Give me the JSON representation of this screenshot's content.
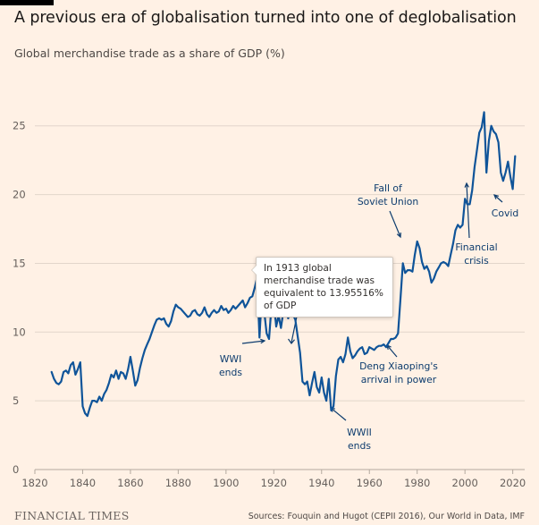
{
  "header": {
    "title": "A previous era of globalisation turned into one of deglobalisation",
    "subtitle": "Global merchandise trade as a share of GDP (%)"
  },
  "footer": {
    "brand": "FINANCIAL TIMES",
    "source": "Sources: Fouquin and Hugot (CEPII 2016), Our World in Data, IMF"
  },
  "tooltip": {
    "text": "In 1913 global merchandise trade was equivalent to 13.95516% of GDP"
  },
  "colors": {
    "background": "#fff1e5",
    "line": "#0f5499",
    "annotation": "#0d3c6e",
    "grid": "#e2d6cb",
    "axis_text": "#66605c"
  },
  "chart_data": {
    "type": "line",
    "title": "",
    "xlabel": "",
    "ylabel": "",
    "xlim": [
      1820,
      2025
    ],
    "ylim": [
      0,
      27
    ],
    "x_ticks": [
      1820,
      1840,
      1860,
      1880,
      1900,
      1920,
      1940,
      1960,
      1980,
      2000,
      2020
    ],
    "y_ticks": [
      0,
      5,
      10,
      15,
      20,
      25
    ],
    "grid": true,
    "series": [
      {
        "points": [
          [
            1827,
            7.1
          ],
          [
            1828,
            6.6
          ],
          [
            1829,
            6.3
          ],
          [
            1830,
            6.2
          ],
          [
            1831,
            6.4
          ],
          [
            1832,
            7.1
          ],
          [
            1833,
            7.2
          ],
          [
            1834,
            7.0
          ],
          [
            1835,
            7.6
          ],
          [
            1836,
            7.8
          ],
          [
            1837,
            6.9
          ],
          [
            1838,
            7.3
          ],
          [
            1839,
            7.8
          ],
          [
            1840,
            4.6
          ],
          [
            1841,
            4.1
          ],
          [
            1842,
            3.9
          ],
          [
            1843,
            4.5
          ],
          [
            1844,
            5.0
          ],
          [
            1845,
            5.0
          ],
          [
            1846,
            4.9
          ],
          [
            1847,
            5.3
          ],
          [
            1848,
            5.0
          ],
          [
            1849,
            5.5
          ],
          [
            1850,
            5.8
          ],
          [
            1851,
            6.3
          ],
          [
            1852,
            6.9
          ],
          [
            1853,
            6.7
          ],
          [
            1854,
            7.2
          ],
          [
            1855,
            6.6
          ],
          [
            1856,
            7.1
          ],
          [
            1857,
            7.0
          ],
          [
            1858,
            6.6
          ],
          [
            1859,
            7.3
          ],
          [
            1860,
            8.2
          ],
          [
            1861,
            7.2
          ],
          [
            1862,
            6.1
          ],
          [
            1863,
            6.5
          ],
          [
            1864,
            7.4
          ],
          [
            1865,
            8.1
          ],
          [
            1866,
            8.7
          ],
          [
            1867,
            9.1
          ],
          [
            1868,
            9.5
          ],
          [
            1869,
            10.0
          ],
          [
            1870,
            10.5
          ],
          [
            1871,
            10.9
          ],
          [
            1872,
            11.0
          ],
          [
            1873,
            10.9
          ],
          [
            1874,
            11.0
          ],
          [
            1875,
            10.6
          ],
          [
            1876,
            10.4
          ],
          [
            1877,
            10.8
          ],
          [
            1878,
            11.5
          ],
          [
            1879,
            12.0
          ],
          [
            1880,
            11.8
          ],
          [
            1881,
            11.7
          ],
          [
            1882,
            11.5
          ],
          [
            1883,
            11.3
          ],
          [
            1884,
            11.1
          ],
          [
            1885,
            11.2
          ],
          [
            1886,
            11.5
          ],
          [
            1887,
            11.6
          ],
          [
            1888,
            11.3
          ],
          [
            1889,
            11.2
          ],
          [
            1890,
            11.4
          ],
          [
            1891,
            11.8
          ],
          [
            1892,
            11.3
          ],
          [
            1893,
            11.1
          ],
          [
            1894,
            11.4
          ],
          [
            1895,
            11.6
          ],
          [
            1896,
            11.4
          ],
          [
            1897,
            11.5
          ],
          [
            1898,
            11.9
          ],
          [
            1899,
            11.6
          ],
          [
            1900,
            11.7
          ],
          [
            1901,
            11.4
          ],
          [
            1902,
            11.6
          ],
          [
            1903,
            11.9
          ],
          [
            1904,
            11.7
          ],
          [
            1905,
            11.9
          ],
          [
            1906,
            12.1
          ],
          [
            1907,
            12.3
          ],
          [
            1908,
            11.8
          ],
          [
            1909,
            12.1
          ],
          [
            1910,
            12.5
          ],
          [
            1911,
            12.6
          ],
          [
            1912,
            13.2
          ],
          [
            1913,
            13.95516
          ],
          [
            1914,
            9.6
          ],
          [
            1915,
            12.9
          ],
          [
            1916,
            11.5
          ],
          [
            1917,
            9.9
          ],
          [
            1918,
            9.5
          ],
          [
            1919,
            11.8
          ],
          [
            1920,
            12.2
          ],
          [
            1921,
            10.4
          ],
          [
            1922,
            11.2
          ],
          [
            1923,
            10.3
          ],
          [
            1924,
            11.5
          ],
          [
            1925,
            12.0
          ],
          [
            1926,
            11.0
          ],
          [
            1927,
            11.6
          ],
          [
            1928,
            11.3
          ],
          [
            1929,
            10.9
          ],
          [
            1930,
            9.7
          ],
          [
            1931,
            8.5
          ],
          [
            1932,
            6.4
          ],
          [
            1933,
            6.2
          ],
          [
            1934,
            6.4
          ],
          [
            1935,
            5.4
          ],
          [
            1936,
            6.3
          ],
          [
            1937,
            7.1
          ],
          [
            1938,
            6.0
          ],
          [
            1939,
            5.6
          ],
          [
            1940,
            6.7
          ],
          [
            1941,
            5.6
          ],
          [
            1942,
            5.0
          ],
          [
            1943,
            6.6
          ],
          [
            1944,
            4.3
          ],
          [
            1945,
            4.6
          ],
          [
            1946,
            6.8
          ],
          [
            1947,
            8.0
          ],
          [
            1948,
            8.2
          ],
          [
            1949,
            7.8
          ],
          [
            1950,
            8.4
          ],
          [
            1951,
            9.6
          ],
          [
            1952,
            8.6
          ],
          [
            1953,
            8.1
          ],
          [
            1954,
            8.3
          ],
          [
            1955,
            8.6
          ],
          [
            1956,
            8.8
          ],
          [
            1957,
            8.9
          ],
          [
            1958,
            8.4
          ],
          [
            1959,
            8.5
          ],
          [
            1960,
            8.9
          ],
          [
            1961,
            8.8
          ],
          [
            1962,
            8.7
          ],
          [
            1963,
            8.9
          ],
          [
            1964,
            9.0
          ],
          [
            1965,
            9.0
          ],
          [
            1966,
            9.1
          ],
          [
            1967,
            8.9
          ],
          [
            1968,
            9.2
          ],
          [
            1969,
            9.5
          ],
          [
            1970,
            9.5
          ],
          [
            1971,
            9.6
          ],
          [
            1972,
            9.9
          ],
          [
            1973,
            12.4
          ],
          [
            1974,
            15.0
          ],
          [
            1975,
            14.3
          ],
          [
            1976,
            14.5
          ],
          [
            1977,
            14.5
          ],
          [
            1978,
            14.4
          ],
          [
            1979,
            15.6
          ],
          [
            1980,
            16.6
          ],
          [
            1981,
            16.1
          ],
          [
            1982,
            15.1
          ],
          [
            1983,
            14.6
          ],
          [
            1984,
            14.8
          ],
          [
            1985,
            14.4
          ],
          [
            1986,
            13.6
          ],
          [
            1987,
            13.9
          ],
          [
            1988,
            14.4
          ],
          [
            1989,
            14.7
          ],
          [
            1990,
            15.0
          ],
          [
            1991,
            15.1
          ],
          [
            1992,
            15.0
          ],
          [
            1993,
            14.8
          ],
          [
            1994,
            15.6
          ],
          [
            1995,
            16.4
          ],
          [
            1996,
            17.4
          ],
          [
            1997,
            17.8
          ],
          [
            1998,
            17.6
          ],
          [
            1999,
            17.8
          ],
          [
            2000,
            19.7
          ],
          [
            2001,
            19.3
          ],
          [
            2002,
            19.3
          ],
          [
            2003,
            20.3
          ],
          [
            2004,
            22.0
          ],
          [
            2005,
            23.2
          ],
          [
            2006,
            24.5
          ],
          [
            2007,
            24.9
          ],
          [
            2008,
            26.0
          ],
          [
            2009,
            21.6
          ],
          [
            2010,
            23.9
          ],
          [
            2011,
            25.0
          ],
          [
            2012,
            24.6
          ],
          [
            2013,
            24.4
          ],
          [
            2014,
            23.8
          ],
          [
            2015,
            21.6
          ],
          [
            2016,
            21.0
          ],
          [
            2017,
            21.6
          ],
          [
            2018,
            22.4
          ],
          [
            2019,
            21.3
          ],
          [
            2020,
            20.4
          ],
          [
            2021,
            22.8
          ]
        ]
      }
    ],
    "annotations": [
      {
        "text": [
          "WWI",
          "ends"
        ],
        "x": 1920
      },
      {
        "text": [
          "WWII",
          "ends"
        ],
        "x": 1947
      },
      {
        "text": [
          "Deng Xiaoping's",
          "arrival in power"
        ],
        "x": 1976
      },
      {
        "text": [
          "Fall of",
          "Soviet Union"
        ],
        "x": 1989
      },
      {
        "text": [
          "Financial",
          "crisis"
        ],
        "x": 2008
      },
      {
        "text": [
          "Covid"
        ],
        "x": 2020
      }
    ]
  }
}
